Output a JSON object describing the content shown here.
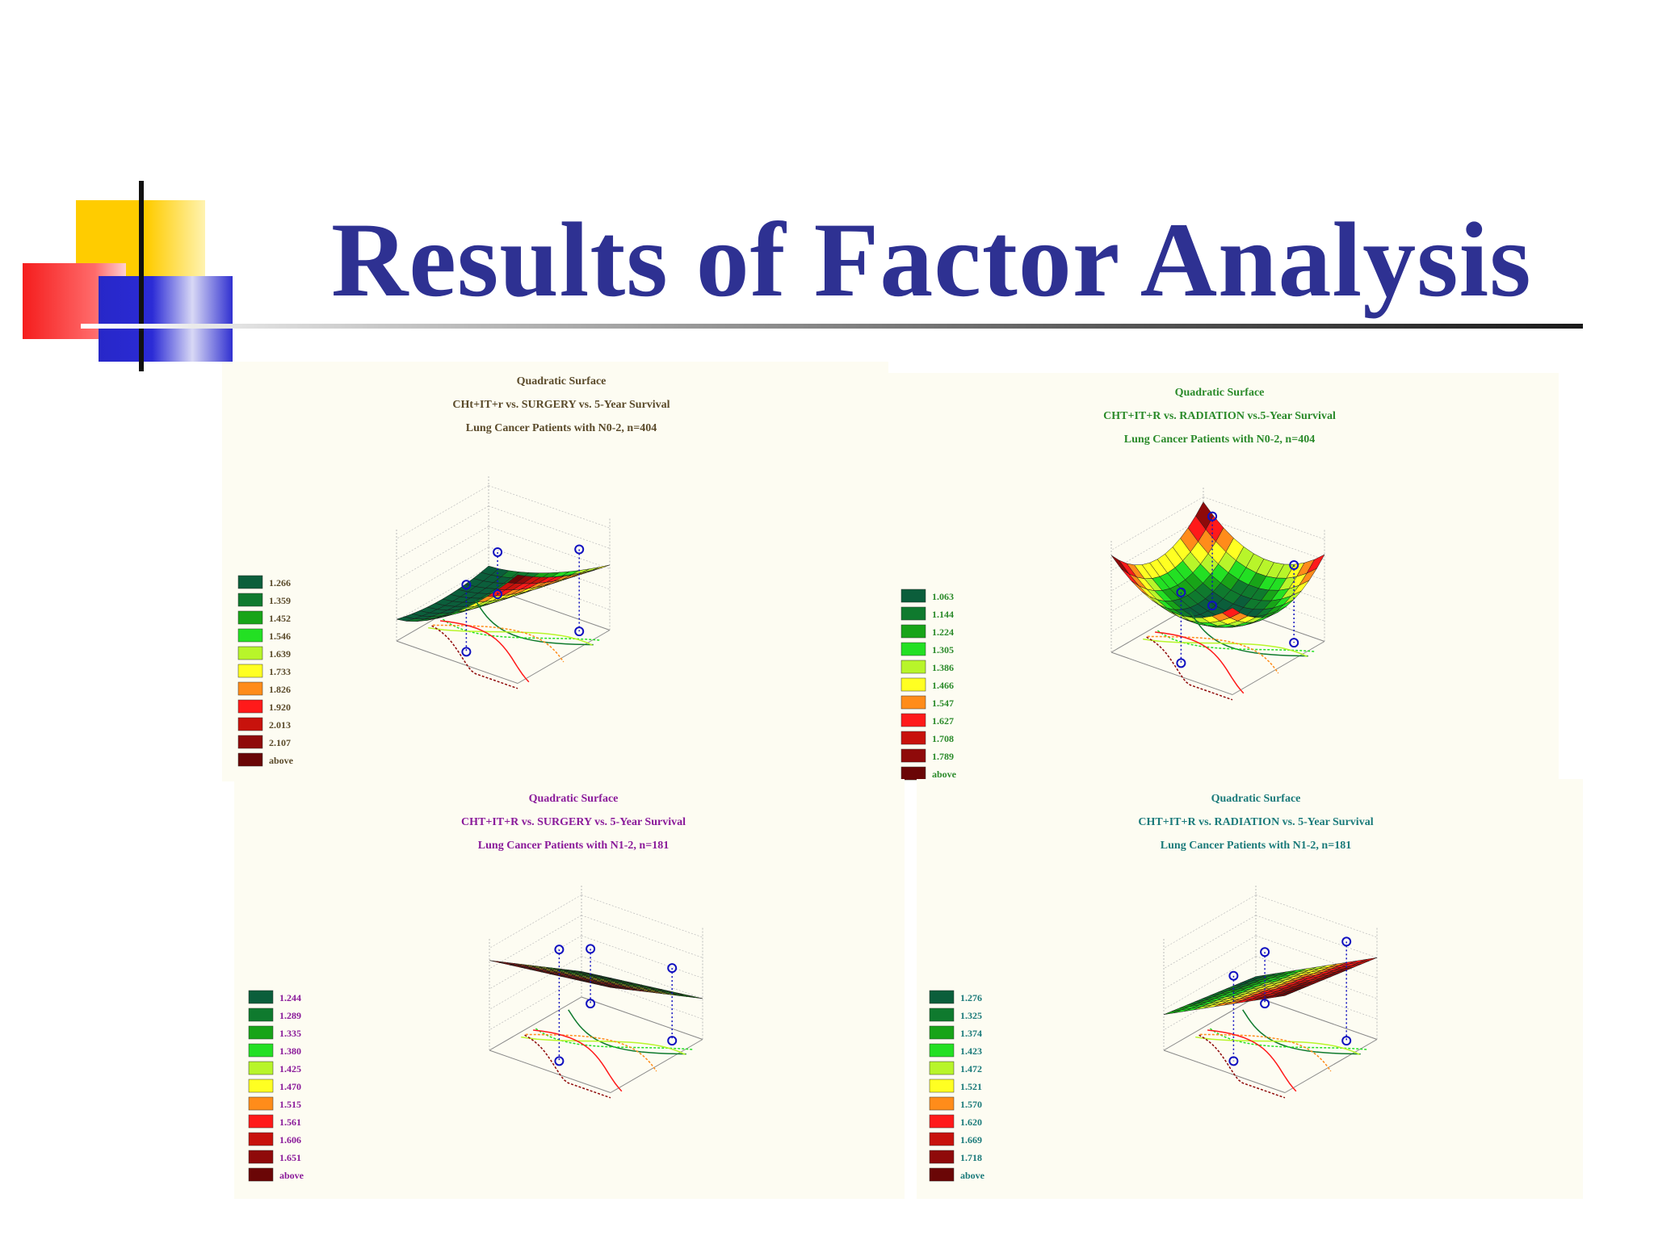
{
  "page": {
    "title": "Results of Factor Analysis"
  },
  "chart_data": [
    {
      "type": "surface",
      "subtitle": "Quadratic Surface",
      "title": "CHt+IT+r vs. SURGERY vs. 5-Year Survival",
      "caption": "Lung Cancer Patients with N0-2, n=404",
      "text_color": "#5a4a2a",
      "legend": [
        "1.266",
        "1.359",
        "1.452",
        "1.546",
        "1.639",
        "1.733",
        "1.826",
        "1.920",
        "2.013",
        "2.107",
        "above"
      ],
      "surface": "ridge"
    },
    {
      "type": "surface",
      "subtitle": "Quadratic Surface",
      "title": "CHT+IT+R vs. RADIATION vs.5-Year Survival",
      "caption": "Lung Cancer Patients with N0-2, n=404",
      "text_color": "#2a8a2a",
      "legend": [
        "1.063",
        "1.144",
        "1.224",
        "1.305",
        "1.386",
        "1.466",
        "1.547",
        "1.627",
        "1.708",
        "1.789",
        "above"
      ],
      "surface": "bowl"
    },
    {
      "type": "surface",
      "subtitle": "Quadratic Surface",
      "title": "CHT+IT+R vs. SURGERY vs. 5-Year Survival",
      "caption": "Lung Cancer Patients with N1-2, n=181",
      "text_color": "#8a1a9a",
      "legend": [
        "1.244",
        "1.289",
        "1.335",
        "1.380",
        "1.425",
        "1.470",
        "1.515",
        "1.561",
        "1.606",
        "1.651",
        "above"
      ],
      "surface": "tilt-back"
    },
    {
      "type": "surface",
      "subtitle": "Quadratic Surface",
      "title": "CHT+IT+R vs. RADIATION vs. 5-Year Survival",
      "caption": "Lung Cancer Patients with N1-2, n=181",
      "text_color": "#1a7a7a",
      "legend": [
        "1.276",
        "1.325",
        "1.374",
        "1.423",
        "1.472",
        "1.521",
        "1.570",
        "1.620",
        "1.669",
        "1.718",
        "above"
      ],
      "surface": "tilt-right"
    }
  ],
  "legend_colors": [
    "#0b5e3b",
    "#0f7a2e",
    "#18a418",
    "#23e023",
    "#b8f52a",
    "#ffff22",
    "#ff8c1a",
    "#ff1a1a",
    "#c8120c",
    "#8f0a0a",
    "#6a0606"
  ]
}
